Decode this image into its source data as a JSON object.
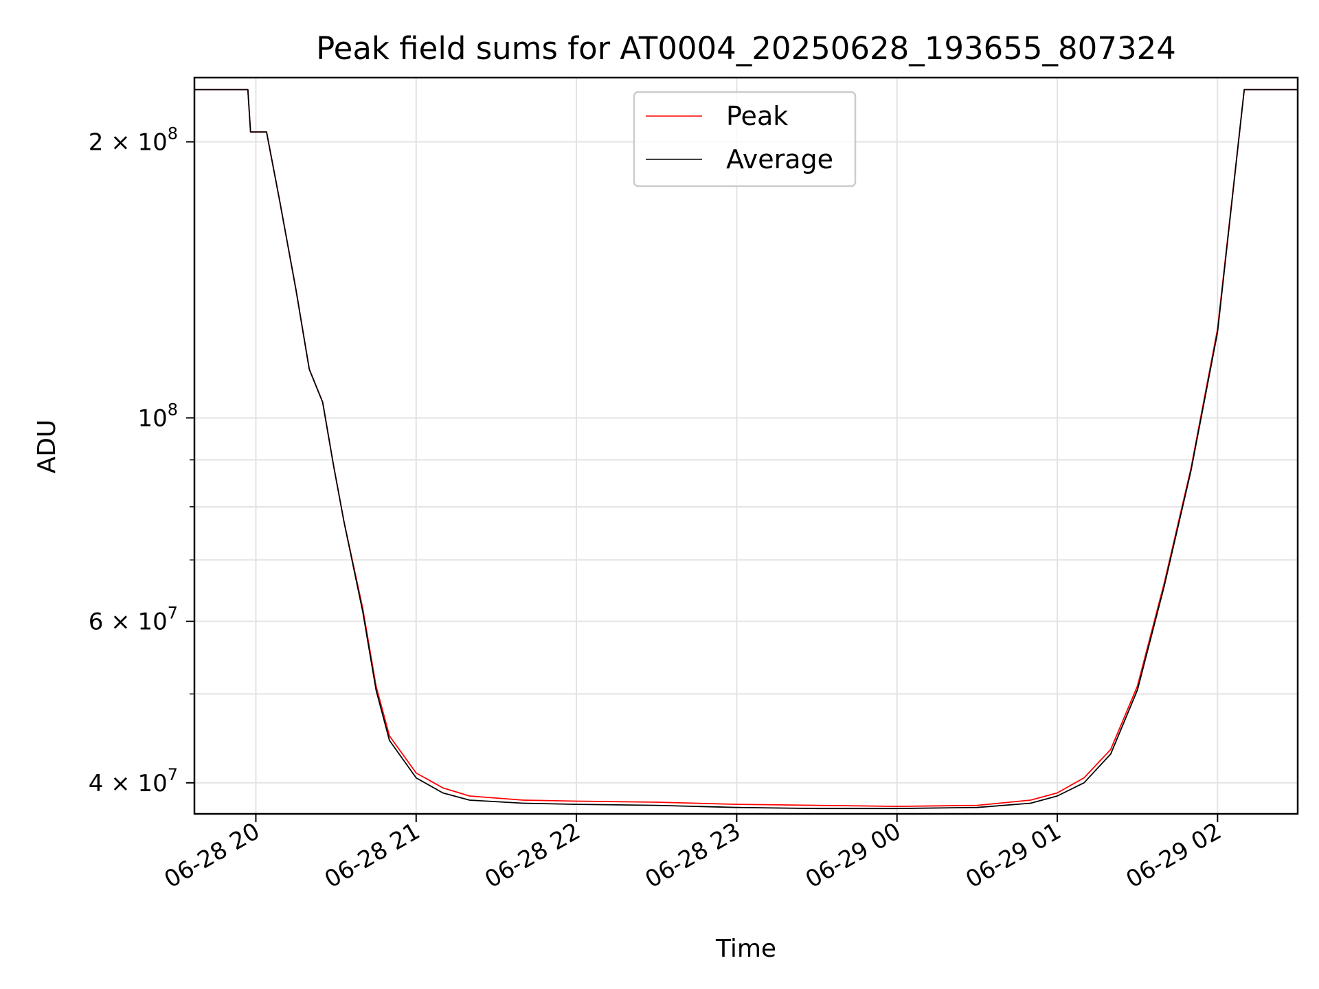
{
  "chart_data": {
    "type": "line",
    "title": "Peak field sums for AT0004_20250628_193655_807324",
    "xlabel": "Time",
    "ylabel": "ADU",
    "y_scale": "log",
    "ylim": [
      37000000,
      235000000
    ],
    "xlim": [
      "2025-06-28 19:37",
      "2025-06-29 02:30"
    ],
    "grid": true,
    "legend_position": "top-center",
    "x_ticks": [
      {
        "value": "2025-06-28 20:00",
        "label": "06-28 20"
      },
      {
        "value": "2025-06-28 21:00",
        "label": "06-28 21"
      },
      {
        "value": "2025-06-28 22:00",
        "label": "06-28 22"
      },
      {
        "value": "2025-06-28 23:00",
        "label": "06-28 23"
      },
      {
        "value": "2025-06-29 00:00",
        "label": "06-29 00"
      },
      {
        "value": "2025-06-29 01:00",
        "label": "06-29 01"
      },
      {
        "value": "2025-06-29 02:00",
        "label": "06-29 02"
      }
    ],
    "y_major_ticks": [
      {
        "value": 40000000,
        "label": "4 × 10",
        "exp": "7"
      },
      {
        "value": 60000000,
        "label": "6 × 10",
        "exp": "7"
      },
      {
        "value": 100000000,
        "label": "10",
        "exp": "8"
      },
      {
        "value": 200000000,
        "label": "2 × 10",
        "exp": "8"
      }
    ],
    "y_minor_ticks": [
      50000000,
      70000000,
      80000000,
      90000000
    ],
    "series": [
      {
        "name": "Peak",
        "color": "#ff0000",
        "x": [
          "2025-06-28 19:37",
          "2025-06-28 19:57",
          "2025-06-28 19:58",
          "2025-06-28 20:04",
          "2025-06-28 20:09",
          "2025-06-28 20:15",
          "2025-06-28 20:20",
          "2025-06-28 20:25",
          "2025-06-28 20:29",
          "2025-06-28 20:33",
          "2025-06-28 20:40",
          "2025-06-28 20:45",
          "2025-06-28 20:50",
          "2025-06-28 21:00",
          "2025-06-28 21:10",
          "2025-06-28 21:20",
          "2025-06-28 21:40",
          "2025-06-28 22:00",
          "2025-06-28 22:30",
          "2025-06-28 23:00",
          "2025-06-28 23:30",
          "2025-06-29 00:00",
          "2025-06-29 00:30",
          "2025-06-29 00:50",
          "2025-06-29 01:00",
          "2025-06-29 01:10",
          "2025-06-29 01:20",
          "2025-06-29 01:30",
          "2025-06-29 01:40",
          "2025-06-29 01:50",
          "2025-06-29 02:00",
          "2025-06-29 02:10",
          "2025-06-29 02:30"
        ],
        "values": [
          228000000,
          228000000,
          205000000,
          205000000,
          172000000,
          138000000,
          113000000,
          104000000,
          89000000,
          77000000,
          62000000,
          51000000,
          45000000,
          41000000,
          39500000,
          38700000,
          38300000,
          38200000,
          38100000,
          37900000,
          37800000,
          37700000,
          37800000,
          38300000,
          39000000,
          40500000,
          43500000,
          51000000,
          66000000,
          88000000,
          125000000,
          228000000,
          228000000
        ]
      },
      {
        "name": "Average",
        "color": "#000000",
        "x": [
          "2025-06-28 19:37",
          "2025-06-28 19:57",
          "2025-06-28 19:58",
          "2025-06-28 20:04",
          "2025-06-28 20:09",
          "2025-06-28 20:15",
          "2025-06-28 20:20",
          "2025-06-28 20:25",
          "2025-06-28 20:29",
          "2025-06-28 20:33",
          "2025-06-28 20:40",
          "2025-06-28 20:45",
          "2025-06-28 20:50",
          "2025-06-28 21:00",
          "2025-06-28 21:10",
          "2025-06-28 21:20",
          "2025-06-28 21:40",
          "2025-06-28 22:00",
          "2025-06-28 22:30",
          "2025-06-28 23:00",
          "2025-06-28 23:30",
          "2025-06-29 00:00",
          "2025-06-29 00:30",
          "2025-06-29 00:50",
          "2025-06-29 01:00",
          "2025-06-29 01:10",
          "2025-06-29 01:20",
          "2025-06-29 01:30",
          "2025-06-29 01:40",
          "2025-06-29 01:50",
          "2025-06-29 02:00",
          "2025-06-29 02:10",
          "2025-06-29 02:30"
        ],
        "values": [
          228000000,
          228000000,
          205000000,
          205000000,
          172000000,
          138000000,
          113000000,
          104000000,
          89000000,
          77000000,
          61500000,
          50500000,
          44500000,
          40500000,
          39000000,
          38300000,
          38000000,
          37900000,
          37800000,
          37600000,
          37500000,
          37500000,
          37600000,
          38000000,
          38700000,
          40000000,
          43000000,
          50500000,
          65500000,
          87500000,
          124000000,
          228000000,
          228000000
        ]
      }
    ]
  }
}
